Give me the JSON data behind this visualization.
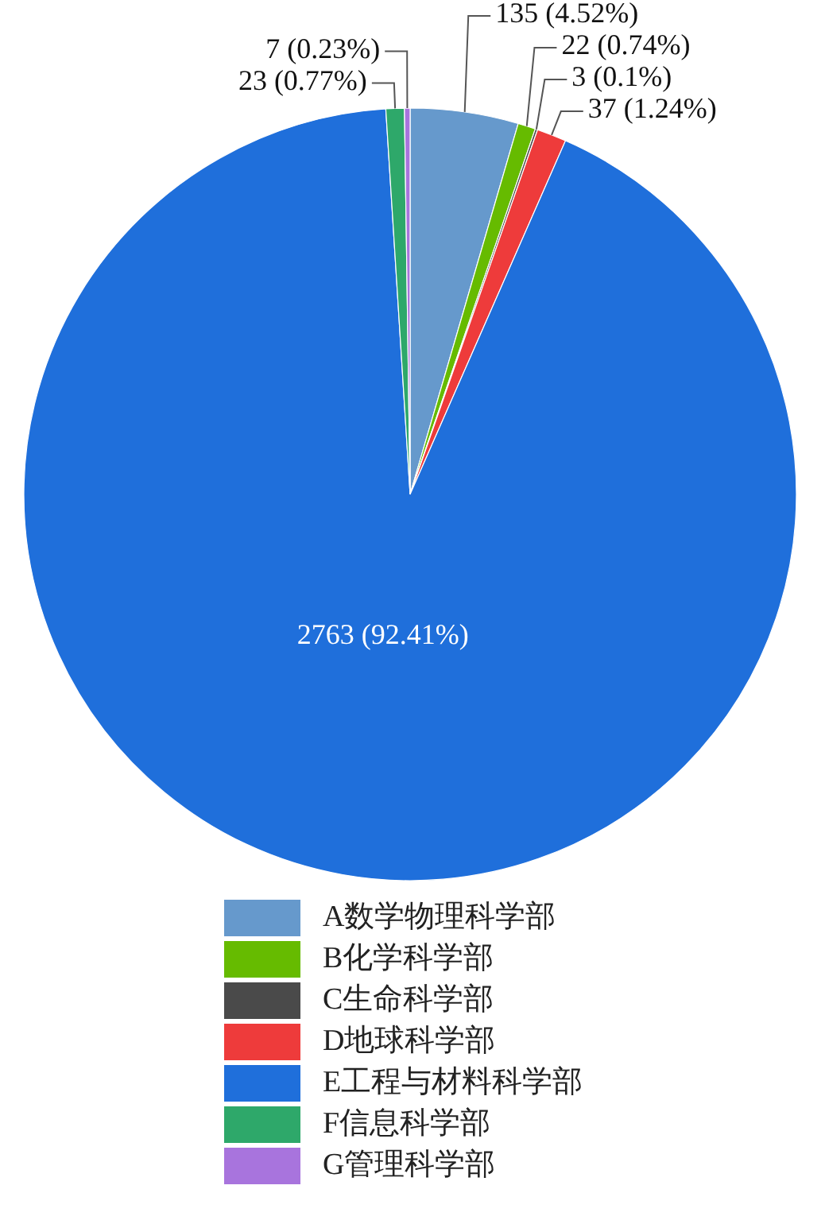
{
  "chart_data": {
    "type": "pie",
    "legend": "bottom",
    "categories": [
      "A数学物理科学部",
      "B化学科学部",
      "C生命科学部",
      "D地球科学部",
      "E工程与材料科学部",
      "F信息科学部",
      "G管理科学部"
    ],
    "values": [
      135,
      22,
      3,
      37,
      2763,
      23,
      7
    ],
    "colors": [
      "#6699cc",
      "#66bb00",
      "#4a4a4a",
      "#ee3b3b",
      "#1f6fdb",
      "#2ea86a",
      "#a874dd"
    ],
    "value_labels": [
      "135 (4.52%)",
      "22 (0.74%)",
      "3 (0.1%)",
      "37 (1.24%)",
      "2763 (92.41%)",
      "23 (0.77%)",
      "7 (0.23%)"
    ]
  }
}
